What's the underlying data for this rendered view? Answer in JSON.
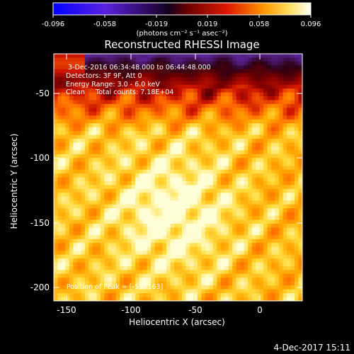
{
  "colorbar": {
    "tick_labels": [
      "-0.096",
      "-0.058",
      "-0.019",
      "0.019",
      "0.058",
      "0.096"
    ],
    "units_text": "(photons cm⁻² s⁻¹ asec⁻²)",
    "colors": [
      "#0000ff",
      "#6a2bd6",
      "#000000",
      "#c00000",
      "#ff8a00",
      "#ffffff"
    ]
  },
  "image": {
    "title": "Reconstructed RHESSI Image",
    "annotations": {
      "time_range": "3-Dec-2016 06:34:48.000 to 06:44:48.000",
      "detectors": "Detectors: 3F 9F, Att 0",
      "energy": "Energy Range: 3.0 - 6.0 keV",
      "algorithm": "Clean     Total counts: 7.18E+04",
      "peak": "Position of Peak = [-53,-163]"
    },
    "x_axis": {
      "label": "Heliocentric X (arcsec)",
      "ticks": [
        "-150",
        "-100",
        "-50",
        "0"
      ],
      "tick_values": [
        -150,
        -100,
        -50,
        0
      ],
      "range": [
        -163,
        33
      ]
    },
    "y_axis": {
      "label": "Heliocentric Y (arcsec)",
      "ticks": [
        "-50",
        "-100",
        "-150",
        "-200"
      ],
      "tick_values": [
        -50,
        -100,
        -150,
        -200
      ],
      "range": [
        -214,
        -24
      ]
    }
  },
  "footer": {
    "date": "4-Dec-2017 15:11"
  }
}
